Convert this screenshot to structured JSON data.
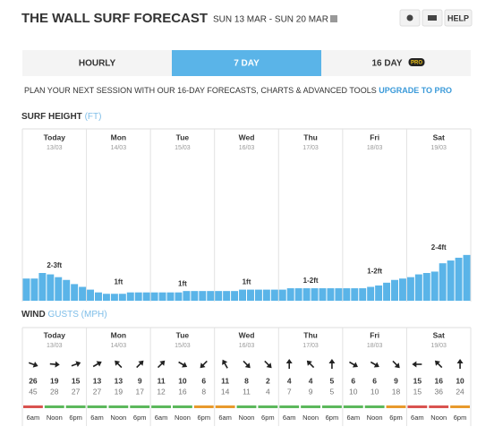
{
  "header": {
    "title": "THE WALL SURF FORECAST",
    "date_range": "SUN 13 MAR - SUN 20 MAR",
    "help": "HELP"
  },
  "tabs": [
    "HOURLY",
    "7 DAY",
    "16 DAY"
  ],
  "pro_badge": "PRO",
  "active_tab": 1,
  "promo": {
    "text": "PLAN YOUR NEXT SESSION WITH OUR 16-DAY FORECASTS, CHARTS & ADVANCED TOOLS",
    "link": "UPGRADE TO PRO"
  },
  "days": [
    {
      "name": "Today",
      "date": "13/03"
    },
    {
      "name": "Mon",
      "date": "14/03"
    },
    {
      "name": "Tue",
      "date": "15/03"
    },
    {
      "name": "Wed",
      "date": "16/03"
    },
    {
      "name": "Thu",
      "date": "17/03"
    },
    {
      "name": "Fri",
      "date": "18/03"
    },
    {
      "name": "Sat",
      "date": "19/03"
    }
  ],
  "chart_data": {
    "type": "bar",
    "title": "SURF HEIGHT",
    "unit": "(FT)",
    "color": "#5ab4e8",
    "ylim": [
      0,
      12
    ],
    "values": [
      1.6,
      1.6,
      2.0,
      1.9,
      1.7,
      1.5,
      1.2,
      1.0,
      0.8,
      0.6,
      0.5,
      0.5,
      0.5,
      0.6,
      0.6,
      0.6,
      0.6,
      0.6,
      0.6,
      0.6,
      0.7,
      0.7,
      0.7,
      0.7,
      0.7,
      0.7,
      0.7,
      0.8,
      0.8,
      0.8,
      0.8,
      0.8,
      0.8,
      0.9,
      0.9,
      0.9,
      0.9,
      0.9,
      0.9,
      0.9,
      0.9,
      0.9,
      0.9,
      1.0,
      1.1,
      1.3,
      1.5,
      1.6,
      1.7,
      1.9,
      2.0,
      2.1,
      2.7,
      2.9,
      3.1,
      3.3
    ],
    "day_labels": [
      "2-3ft",
      "1ft",
      "1ft",
      "1ft",
      "1-2ft",
      "1-2ft",
      "2-4ft"
    ]
  },
  "wind": {
    "title": "WIND",
    "unit": "GUSTS (MPH)",
    "times": [
      "6am",
      "Noon",
      "6pm"
    ],
    "speed": [
      26,
      19,
      15,
      13,
      13,
      9,
      11,
      10,
      6,
      11,
      8,
      2,
      4,
      4,
      5,
      6,
      6,
      9,
      15,
      16,
      10
    ],
    "gusts": [
      45,
      28,
      27,
      27,
      19,
      17,
      12,
      16,
      8,
      14,
      11,
      4,
      7,
      9,
      5,
      10,
      10,
      18,
      15,
      36,
      24
    ],
    "direction": [
      110,
      95,
      70,
      60,
      315,
      45,
      45,
      120,
      225,
      330,
      135,
      135,
      0,
      315,
      0,
      120,
      120,
      135,
      270,
      315,
      0
    ],
    "rating_colors": [
      "#d9534f",
      "#5cb85c",
      "#5cb85c",
      "#5cb85c",
      "#5cb85c",
      "#5cb85c",
      "#5cb85c",
      "#5cb85c",
      "#e89a2c",
      "#e89a2c",
      "#5cb85c",
      "#5cb85c",
      "#5cb85c",
      "#5cb85c",
      "#5cb85c",
      "#5cb85c",
      "#5cb85c",
      "#e89a2c",
      "#d9534f",
      "#d9534f",
      "#e89a2c"
    ]
  }
}
